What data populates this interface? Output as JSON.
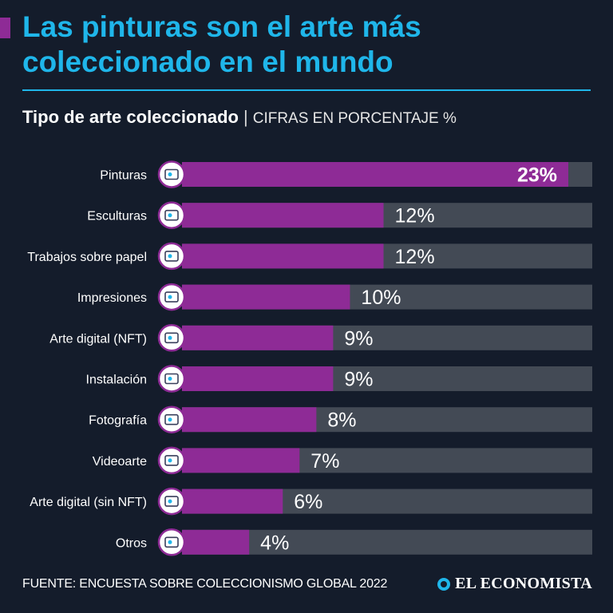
{
  "header": {
    "title": "Las pinturas son el arte más coleccionado en el mundo",
    "subtitle_bold": "Tipo de arte coleccionado",
    "subtitle_sep": "|",
    "subtitle_unit": "CIFRAS EN PORCENTAJE %"
  },
  "colors": {
    "accent": "#1fb6ea",
    "bar_fill": "#8e2b96",
    "bar_track": "#434a55",
    "background": "#141c2b"
  },
  "chart_data": {
    "type": "bar",
    "orientation": "horizontal",
    "title": "Tipo de arte coleccionado",
    "unit_label": "CIFRAS EN PORCENTAJE %",
    "xlim": [
      0,
      25
    ],
    "grid": false,
    "categories": [
      "Pinturas",
      "Esculturas",
      "Trabajos sobre papel",
      "Impresiones",
      "Arte digital (NFT)",
      "Instalación",
      "Fotografía",
      "Videoarte",
      "Arte digital (sin NFT)",
      "Otros"
    ],
    "values": [
      23,
      12,
      12,
      10,
      9,
      9,
      8,
      7,
      6,
      4
    ],
    "value_labels": [
      "23%",
      "12%",
      "12%",
      "10%",
      "9%",
      "9%",
      "8%",
      "7%",
      "6%",
      "4%"
    ],
    "icons": [
      "painting-icon",
      "sculpture-icon",
      "pencil-icon",
      "print-icon",
      "unicorn-icon",
      "installation-icon",
      "photo-icon",
      "video-icon",
      "digital-art-icon",
      "other-icon"
    ]
  },
  "footer": {
    "source": "FUENTE: ENCUESTA SOBRE COLECCIONISMO GLOBAL 2022",
    "brand": "EL ECONOMISTA"
  }
}
